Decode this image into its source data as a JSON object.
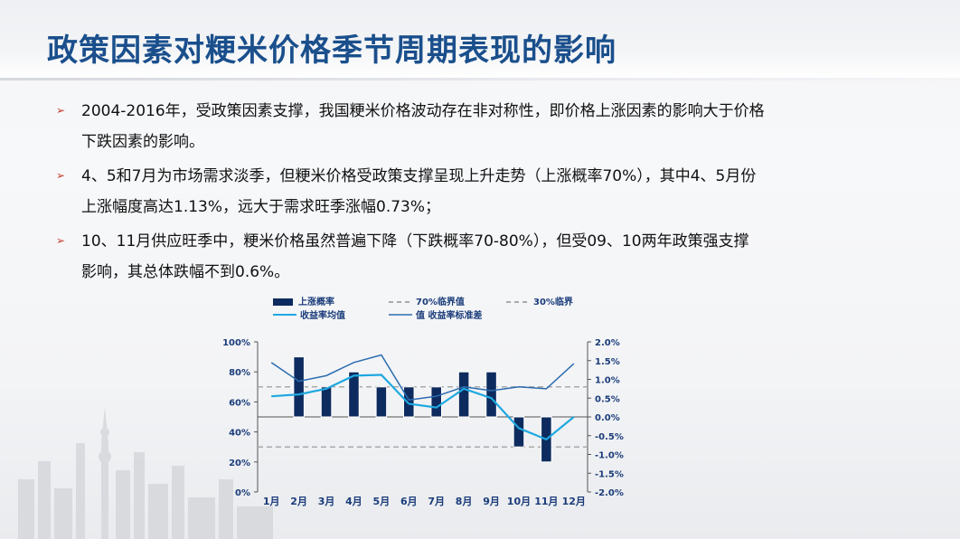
{
  "slide": {
    "title": "政策因素对粳米价格季节周期表现的影响"
  },
  "bullets": [
    {
      "line1": "2004-2016年，受政策因素支撑，我国粳米价格波动存在非对称性，即价格上涨因素的影响大于价格",
      "line2": "下跌因素的影响。"
    },
    {
      "line1": "4、5和7月为市场需求淡季，但粳米价格受政策支撑呈现上升走势（上涨概率70%），其中4、5月份",
      "line2": "上涨幅度高达1.13%，远大于需求旺季涨幅0.73%；"
    },
    {
      "line1": "10、11月供应旺季中，粳米价格虽然普遍下降（下跌概率70-80%），但受09、10两年政策强支撑",
      "line2": "影响，其总体跌幅不到0.6%。"
    }
  ],
  "colors": {
    "title": "#1a4f8c",
    "bar": "#0d2b5e",
    "mean_line": "#1fa8e0",
    "std_line": "#2b6cb0",
    "ref_line": "#aaaaaa",
    "bullet_arrow": "#c0392b"
  },
  "chart_data": {
    "type": "bar",
    "categories": [
      "1月",
      "2月",
      "3月",
      "4月",
      "5月",
      "6月",
      "7月",
      "8月",
      "9月",
      "10月",
      "11月",
      "12月"
    ],
    "left_axis": {
      "ylim": [
        0,
        100
      ],
      "ticks": [
        "0%",
        "20%",
        "40%",
        "60%",
        "80%",
        "100%"
      ],
      "tick_values": [
        0,
        20,
        40,
        60,
        80,
        100
      ]
    },
    "right_axis": {
      "ylim": [
        -2.0,
        2.0
      ],
      "ticks": [
        "-2.0%",
        "-1.5%",
        "-1.0%",
        "-0.5%",
        "0.0%",
        "0.5%",
        "1.0%",
        "1.5%",
        "2.0%"
      ],
      "tick_values": [
        -2.0,
        -1.5,
        -1.0,
        -0.5,
        0.0,
        0.5,
        1.0,
        1.5,
        2.0
      ]
    },
    "bar_baseline": 50,
    "series": [
      {
        "name": "上涨概率",
        "type": "bar",
        "axis": "left",
        "values": [
          50,
          90,
          70,
          80,
          70,
          70,
          70,
          80,
          80,
          30,
          20,
          50
        ]
      },
      {
        "name": "收益率均值",
        "type": "line",
        "axis": "right",
        "values": [
          0.55,
          0.6,
          0.75,
          1.1,
          1.12,
          0.35,
          0.25,
          0.75,
          0.5,
          -0.3,
          -0.6,
          0.0
        ]
      },
      {
        "name": "值 收益率标准差",
        "type": "line",
        "axis": "right",
        "values": [
          1.45,
          0.95,
          1.1,
          1.45,
          1.65,
          0.45,
          0.55,
          0.8,
          0.7,
          0.8,
          0.75,
          1.42
        ]
      }
    ],
    "reference_lines": [
      {
        "name": "70%临界值",
        "axis": "left",
        "value": 70
      },
      {
        "name": "30%临界",
        "axis": "left",
        "value": 30
      }
    ],
    "legend": {
      "placement": "top",
      "items": [
        "上涨概率",
        "70%临界值",
        "30%临界",
        "收益率均值",
        "值 收益率标准差"
      ]
    },
    "grid": false
  }
}
